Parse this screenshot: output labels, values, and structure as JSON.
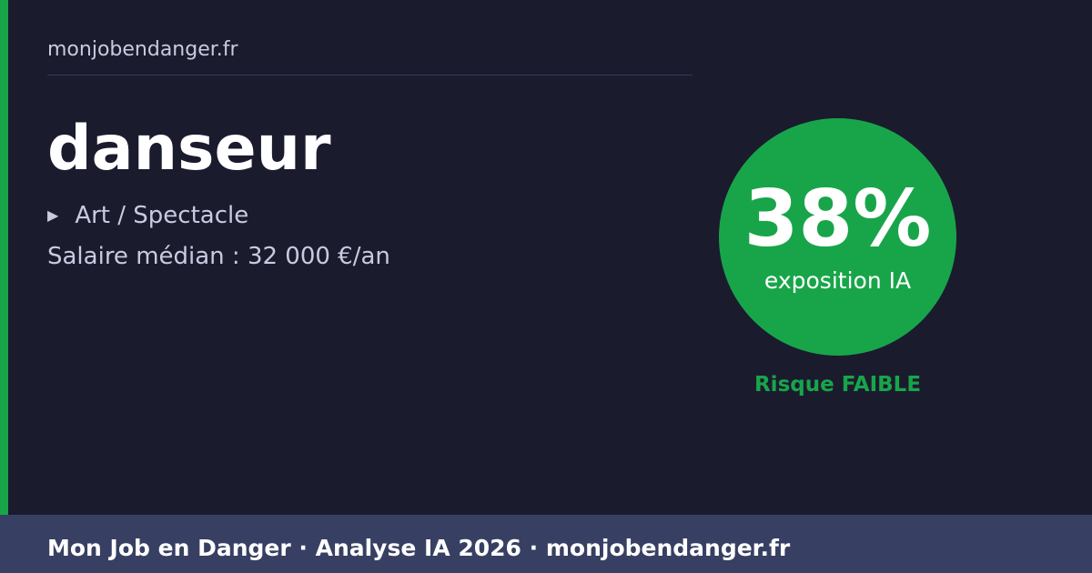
{
  "site": "monjobendanger.fr",
  "job": {
    "title": "danseur",
    "category": "Art / Spectacle",
    "category_icon": "triangle-right-icon",
    "salary": "Salaire médian : 32 000 €/an"
  },
  "score": {
    "percent": "38%",
    "label": "exposition IA",
    "risk": "Risque FAIBLE",
    "color": "#18a54a"
  },
  "footer": "Mon Job en Danger · Analyse IA 2026 · monjobendanger.fr"
}
